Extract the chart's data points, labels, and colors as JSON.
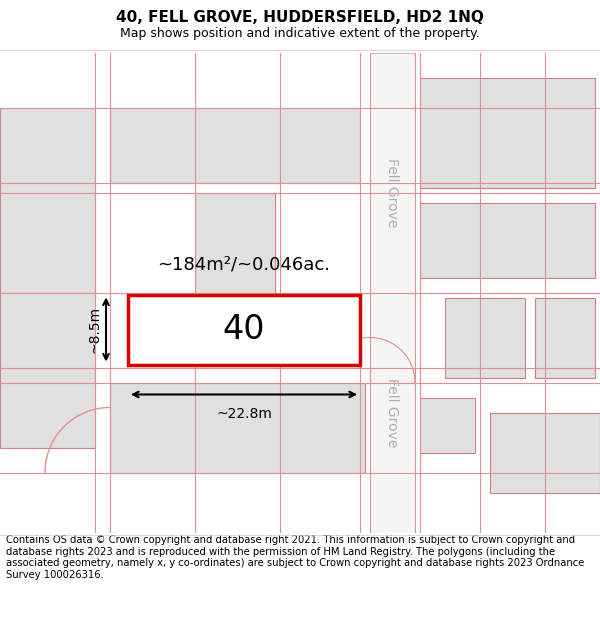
{
  "title": "40, FELL GROVE, HUDDERSFIELD, HD2 1NQ",
  "subtitle": "Map shows position and indicative extent of the property.",
  "footer": "Contains OS data © Crown copyright and database right 2021. This information is subject to Crown copyright and database rights 2023 and is reproduced with the permission of HM Land Registry. The polygons (including the associated geometry, namely x, y co-ordinates) are subject to Crown copyright and database rights 2023 Ordnance Survey 100026316.",
  "area_label": "~184m²/~0.046ac.",
  "width_label": "~22.8m",
  "height_label": "~8.5m",
  "number_label": "40",
  "map_bg": "#ffffff",
  "plot_fill": "#ffffff",
  "plot_edge": "#dd0000",
  "building_fill": "#e0e0e0",
  "building_edge": "#d08080",
  "road_line_color": "#e09090",
  "road_fill": "#f0f0f0",
  "dim_color": "#000000",
  "street_label_color": "#b0b0b0",
  "title_fontsize": 11,
  "subtitle_fontsize": 9,
  "footer_fontsize": 7.2,
  "label_fontsize": 13,
  "number_fontsize": 24,
  "street_fontsize": 10,
  "dim_fontsize": 10
}
